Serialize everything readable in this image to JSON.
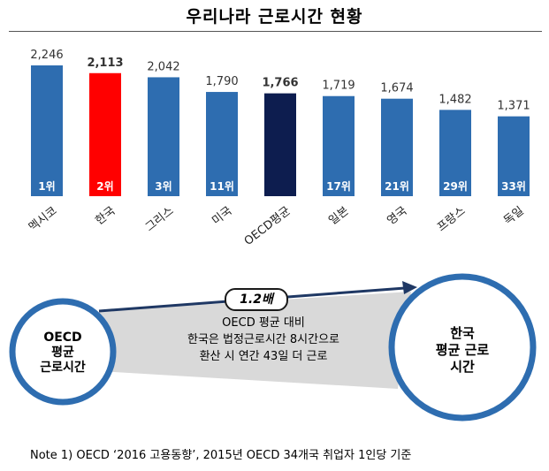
{
  "title": "우리나라 근로시간 현황",
  "chart_data": {
    "type": "bar",
    "categories": [
      "멕시코",
      "한국",
      "그리스",
      "미국",
      "OECD평균",
      "일본",
      "영국",
      "프랑스",
      "독일"
    ],
    "values": [
      2246,
      2113,
      2042,
      1790,
      1766,
      1719,
      1674,
      1482,
      1371
    ],
    "value_labels": [
      "2,246",
      "2,113",
      "2,042",
      "1,790",
      "1,766",
      "1,719",
      "1,674",
      "1,482",
      "1,371"
    ],
    "rank_labels": [
      "1위",
      "2위",
      "3위",
      "11위",
      "",
      "17위",
      "21위",
      "29위",
      "33위"
    ],
    "highlight": {
      "한국": "#ff0000",
      "OECD평균": "#0d1d4f"
    },
    "bold_value_labels": [
      "2,113",
      "1,766"
    ],
    "default_color": "#2e6db0",
    "ylim": [
      0,
      2400
    ]
  },
  "comparison": {
    "left_circle": [
      "OECD",
      "평균",
      "근로시간"
    ],
    "right_circle": [
      "한국",
      "평균 근로",
      "시간"
    ],
    "ratio_label": "1.2배",
    "description": [
      "OECD 평균 대비",
      "한국은 법정근로시간 8시간으로",
      "환산 시 연간 43일 더 근로"
    ]
  },
  "note": "Note 1) OECD ‘2016 고용동향’, 2015년 OECD 34개국 취업자 1인당 기준"
}
